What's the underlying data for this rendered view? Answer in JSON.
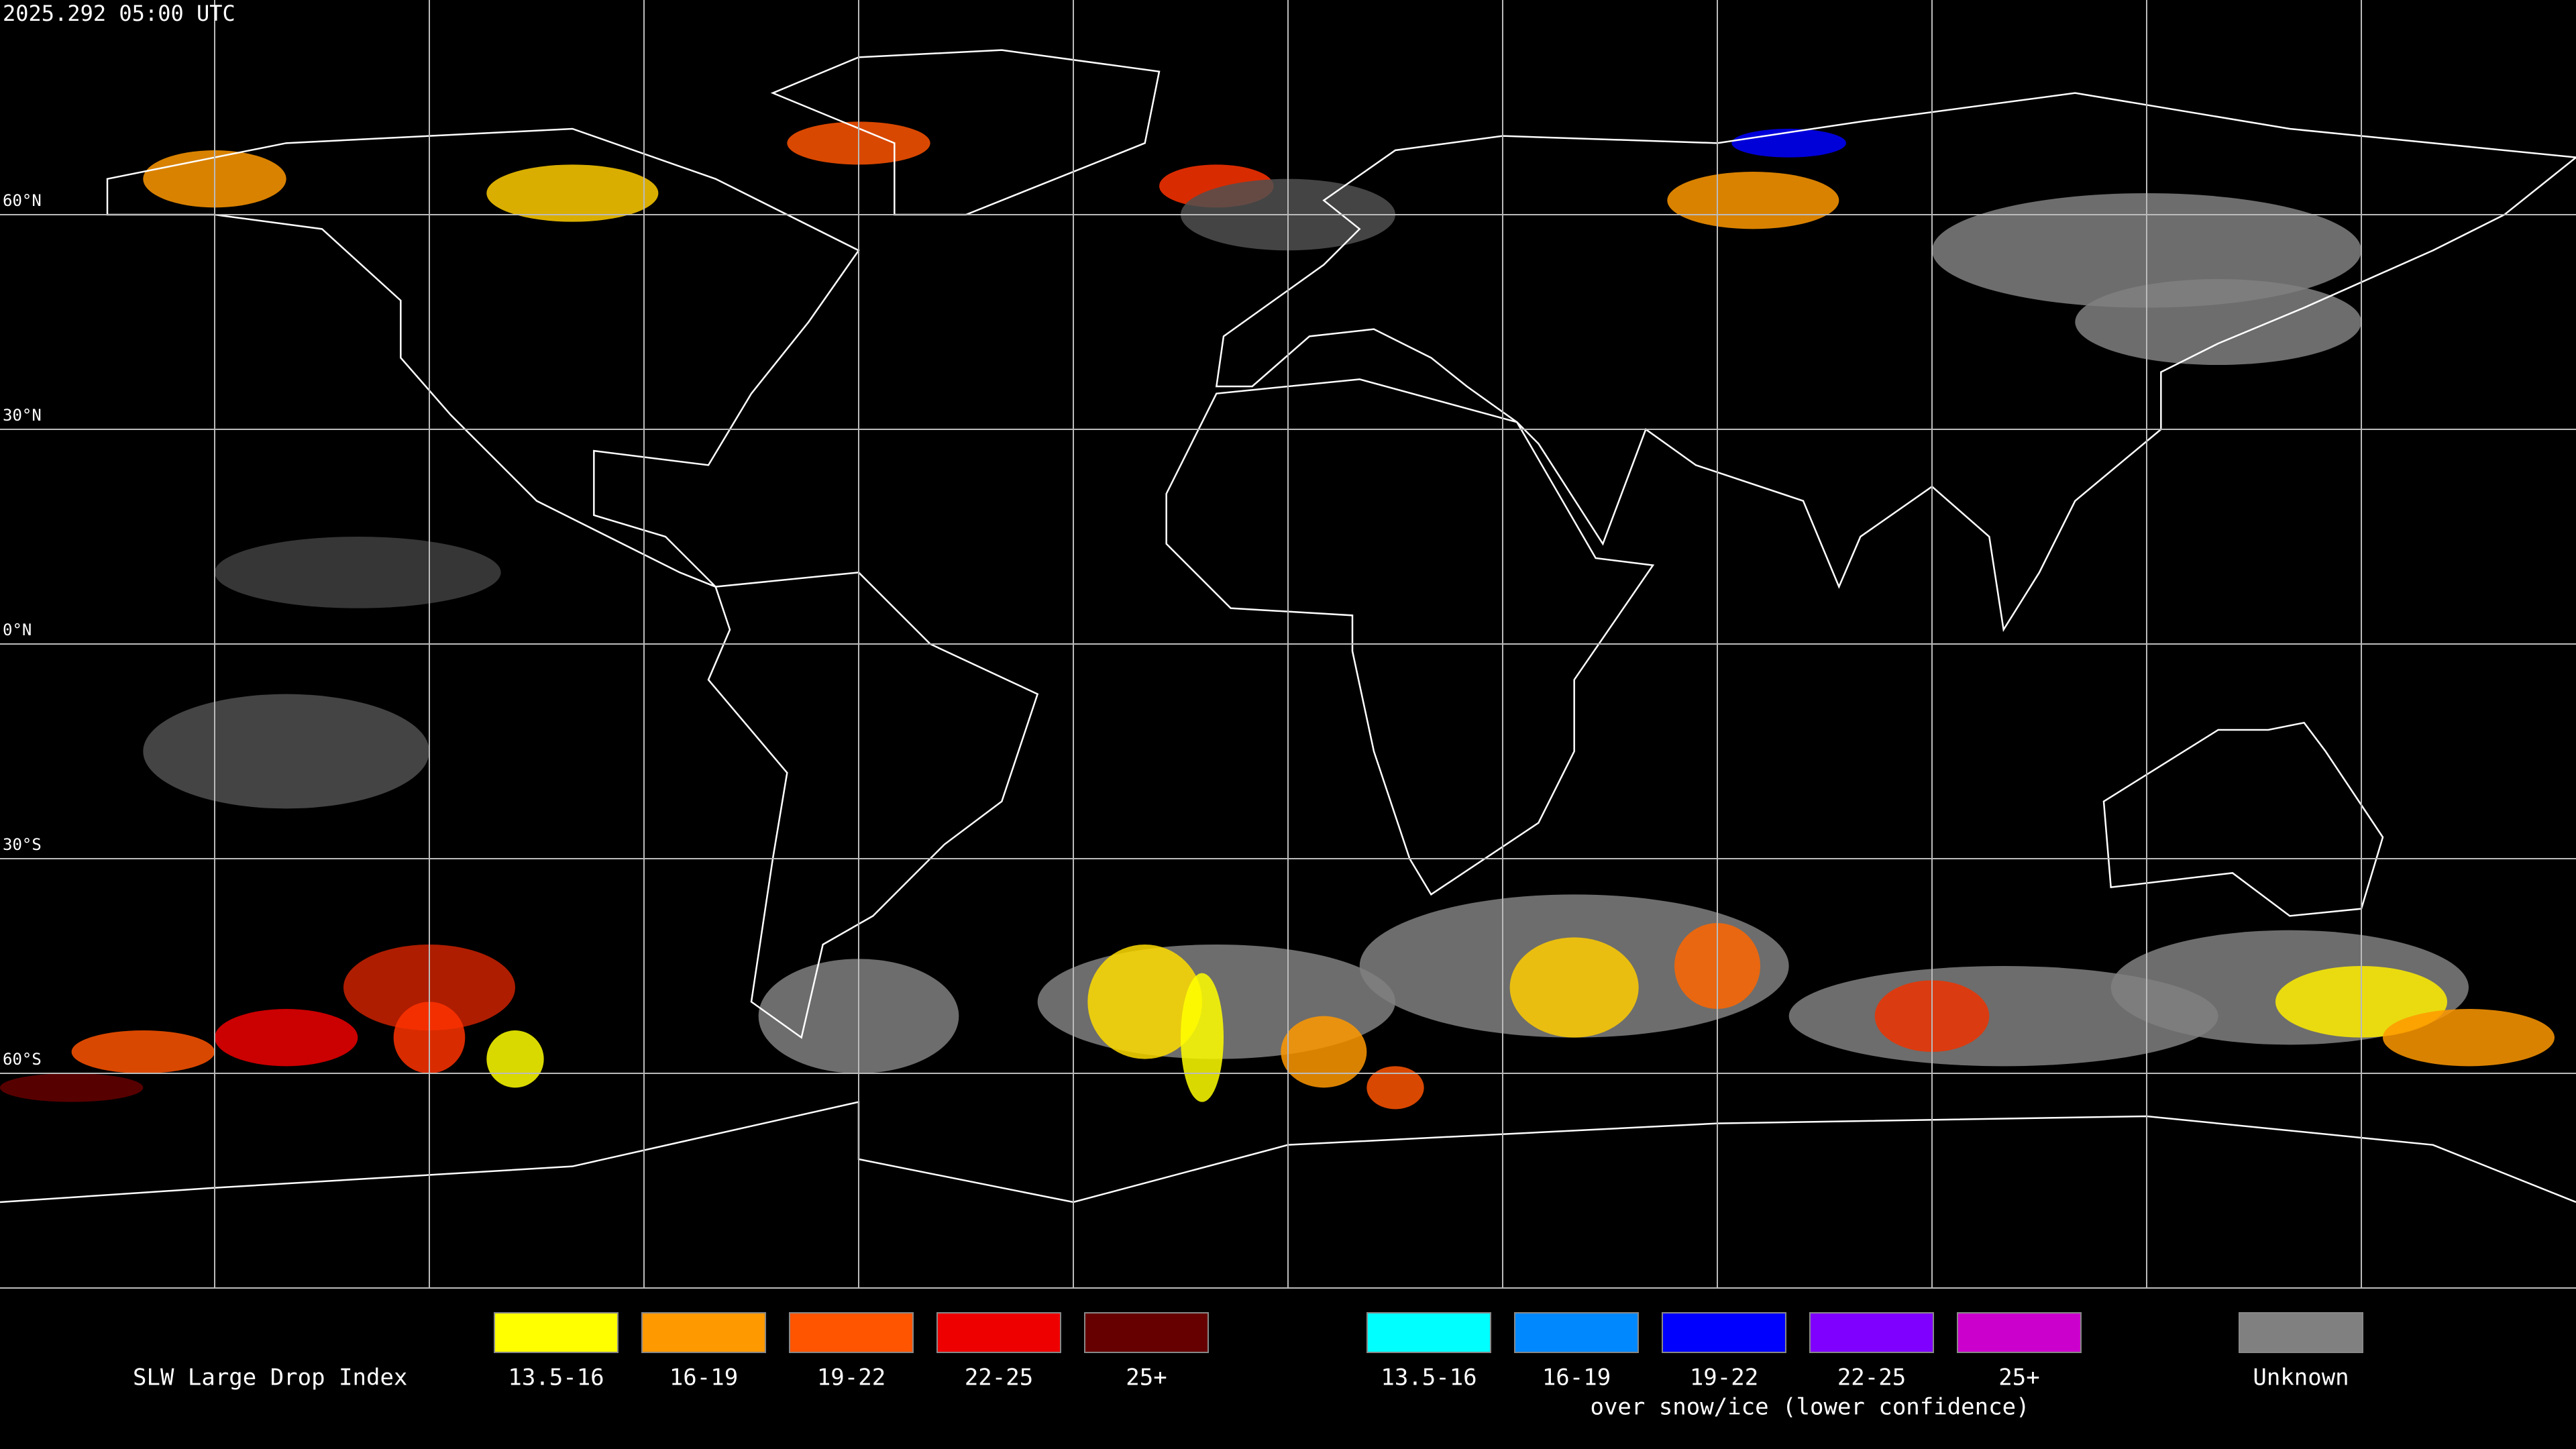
{
  "header": {
    "timestamp": "2025.292 05:00 UTC"
  },
  "grid": {
    "lat_labels": [
      "60°N",
      "30°N",
      "0°N",
      "30°S",
      "60°S"
    ]
  },
  "legend": {
    "title": "SLW Large Drop Index",
    "standard": [
      {
        "label": "13.5-16",
        "color": "#ffff00"
      },
      {
        "label": "16-19",
        "color": "#ff9900"
      },
      {
        "label": "19-22",
        "color": "#ff5500"
      },
      {
        "label": "22-25",
        "color": "#ee0000"
      },
      {
        "label": "25+",
        "color": "#660000"
      }
    ],
    "snow_ice": [
      {
        "label": "13.5-16",
        "color": "#00ffff"
      },
      {
        "label": "16-19",
        "color": "#0088ff"
      },
      {
        "label": "19-22",
        "color": "#0000ff"
      },
      {
        "label": "22-25",
        "color": "#7f00ff"
      },
      {
        "label": "25+",
        "color": "#cc00cc"
      }
    ],
    "snow_ice_note": "over snow/ice (lower confidence)",
    "unknown": {
      "label": "Unknown",
      "color": "#808080"
    }
  }
}
